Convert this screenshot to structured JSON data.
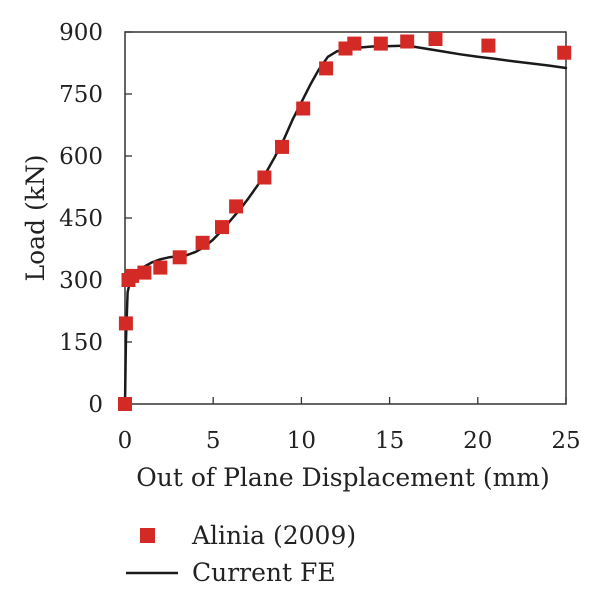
{
  "chart_data": {
    "type": "scatter",
    "title": "",
    "xlabel": "Out of Plane Displacement (mm)",
    "ylabel": "Load (kN)",
    "xlim": [
      0,
      25
    ],
    "ylim": [
      0,
      900
    ],
    "xticks": [
      0,
      5,
      10,
      15,
      20,
      25
    ],
    "xtick_labels": [
      "0",
      "5",
      "10",
      "15",
      "20",
      "25"
    ],
    "yticks": [
      0,
      150,
      300,
      450,
      600,
      750,
      900
    ],
    "ytick_labels": [
      "0",
      "150",
      "300",
      "450",
      "600",
      "750",
      "900"
    ],
    "grid": false,
    "legend_position": "bottom",
    "series": [
      {
        "name": "Alinia (2009)",
        "kind": "markers",
        "marker": "square",
        "color": "#d42a25",
        "x": [
          0.0,
          0.05,
          0.2,
          0.4,
          1.1,
          2.0,
          3.1,
          4.4,
          5.5,
          6.3,
          7.9,
          8.9,
          10.1,
          11.4,
          12.5,
          13.0,
          14.5,
          16.0,
          17.6,
          20.6,
          24.9
        ],
        "y": [
          0,
          195,
          300,
          310,
          318,
          330,
          355,
          390,
          428,
          478,
          548,
          622,
          715,
          812,
          860,
          872,
          872,
          877,
          883,
          867,
          850
        ]
      },
      {
        "name": "Current FE",
        "kind": "line",
        "color": "#1a1a1a",
        "x": [
          0,
          0.05,
          0.15,
          0.3,
          0.6,
          1.0,
          1.5,
          2.0,
          2.5,
          3.0,
          3.5,
          4.0,
          4.5,
          5.0,
          5.5,
          6.0,
          6.5,
          7.0,
          7.5,
          8.0,
          8.5,
          9.0,
          9.5,
          10.0,
          10.5,
          11.0,
          11.5,
          12.0,
          12.5,
          13.0,
          13.5,
          14.0,
          15.0,
          16.0,
          17.0,
          18.0,
          19.0,
          20.0,
          21.0,
          22.0,
          23.0,
          24.0,
          25.0
        ],
        "y": [
          0,
          150,
          270,
          300,
          318,
          330,
          342,
          350,
          355,
          357,
          360,
          368,
          380,
          398,
          420,
          445,
          470,
          498,
          528,
          560,
          598,
          640,
          688,
          730,
          772,
          810,
          840,
          853,
          858,
          861,
          863,
          865,
          866,
          867,
          860,
          853,
          846,
          840,
          835,
          829,
          824,
          819,
          813
        ]
      }
    ]
  }
}
